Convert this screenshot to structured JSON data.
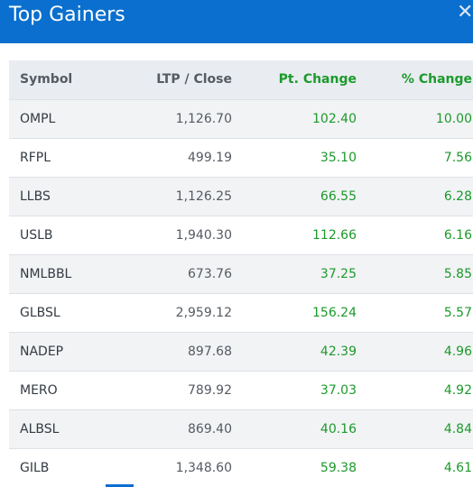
{
  "header": {
    "title": "Top Gainers",
    "close_icon": "close-icon"
  },
  "table": {
    "columns": [
      "Symbol",
      "LTP / Close",
      "Pt. Change",
      "% Change"
    ],
    "rows": [
      {
        "symbol": "OMPL",
        "ltp": "1,126.70",
        "pt": "102.40",
        "pct": "10.00"
      },
      {
        "symbol": "RFPL",
        "ltp": "499.19",
        "pt": "35.10",
        "pct": "7.56"
      },
      {
        "symbol": "LLBS",
        "ltp": "1,126.25",
        "pt": "66.55",
        "pct": "6.28"
      },
      {
        "symbol": "USLB",
        "ltp": "1,940.30",
        "pt": "112.66",
        "pct": "6.16"
      },
      {
        "symbol": "NMLBBL",
        "ltp": "673.76",
        "pt": "37.25",
        "pct": "5.85"
      },
      {
        "symbol": "GLBSL",
        "ltp": "2,959.12",
        "pt": "156.24",
        "pct": "5.57"
      },
      {
        "symbol": "NADEP",
        "ltp": "897.68",
        "pt": "42.39",
        "pct": "4.96"
      },
      {
        "symbol": "MERO",
        "ltp": "789.92",
        "pt": "37.03",
        "pct": "4.92"
      },
      {
        "symbol": "ALBSL",
        "ltp": "869.40",
        "pt": "40.16",
        "pct": "4.84"
      },
      {
        "symbol": "GILB",
        "ltp": "1,348.60",
        "pt": "59.38",
        "pct": "4.61"
      }
    ]
  },
  "colors": {
    "header_bg": "#0a6fce",
    "gain": "#1b9a2b",
    "header_row_bg": "#e9ecf1"
  }
}
